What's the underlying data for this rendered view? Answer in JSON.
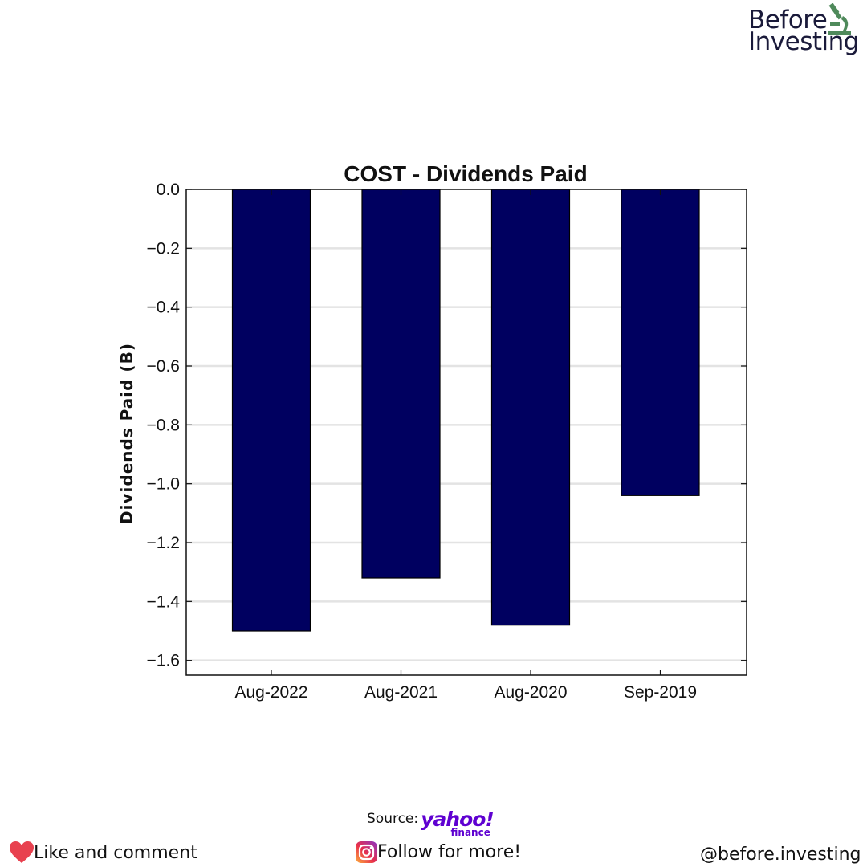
{
  "brand": {
    "line1": "Before",
    "line2": "Investing",
    "icon": "microscope-icon",
    "icon_color": "#4f8a5b"
  },
  "chart_data": {
    "type": "bar",
    "title": "COST - Dividends Paid",
    "xlabel": "",
    "ylabel": "Dividends Paid (B)",
    "categories": [
      "Aug-2022",
      "Aug-2021",
      "Aug-2020",
      "Sep-2019"
    ],
    "values": [
      -1.5,
      -1.32,
      -1.48,
      -1.04
    ],
    "ylim": [
      -1.65,
      0.0
    ],
    "yticks": [
      "0.0",
      "−0.2",
      "−0.4",
      "−0.6",
      "−0.8",
      "−1.0",
      "−1.2",
      "−1.4",
      "−1.6"
    ],
    "ytick_values": [
      0.0,
      -0.2,
      -0.4,
      -0.6,
      -0.8,
      -1.0,
      -1.2,
      -1.4,
      -1.6
    ],
    "grid": "horizontal",
    "bar_color": "#000060"
  },
  "footer": {
    "source_label": "Source:",
    "source_brand": "yahoo!",
    "source_brand_sub": "finance",
    "like_text": "Like and comment",
    "follow_text": "Follow for more!",
    "handle": "@before.investing",
    "like_icon": "heart-icon",
    "follow_icon": "instagram-icon",
    "heart_color": "#e8414f"
  }
}
